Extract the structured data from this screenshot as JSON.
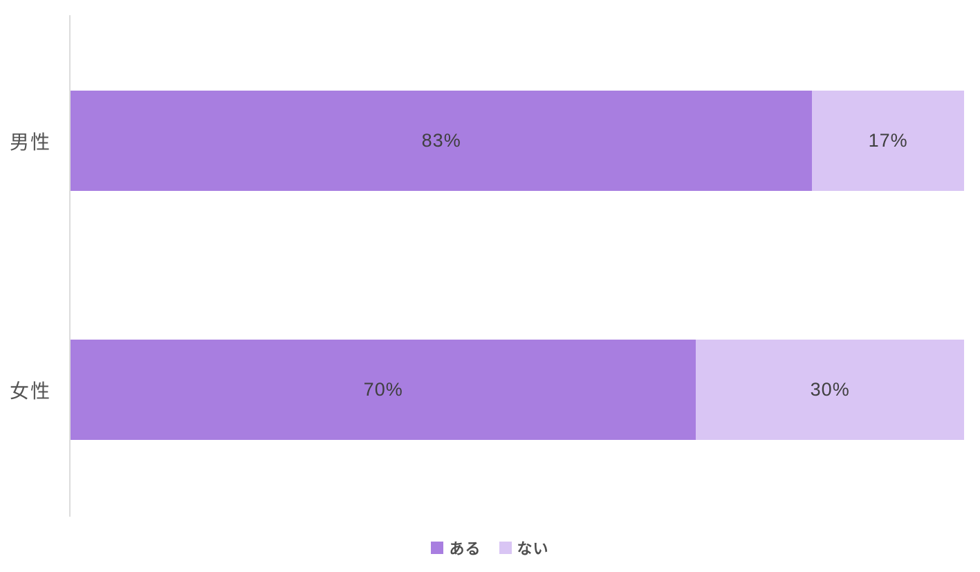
{
  "chart_data": {
    "type": "bar",
    "orientation": "horizontal",
    "stacked": true,
    "title": "",
    "xlabel": "",
    "ylabel": "",
    "xlim": [
      0,
      100
    ],
    "grid": false,
    "legend_position": "bottom",
    "categories": [
      "男性",
      "女性"
    ],
    "series": [
      {
        "name": "ある",
        "color": "#a87ee0",
        "values": [
          83,
          70
        ]
      },
      {
        "name": "ない",
        "color": "#d9c5f4",
        "values": [
          17,
          30
        ]
      }
    ],
    "value_labels": [
      [
        "83%",
        "17%"
      ],
      [
        "70%",
        "30%"
      ]
    ],
    "colors": {
      "axis_line": "#dcdcdc",
      "category_label_text": "#545454",
      "value_label_text": "#3f3f3f",
      "legend_text": "#4d4d4d",
      "background": "#ffffff"
    }
  }
}
